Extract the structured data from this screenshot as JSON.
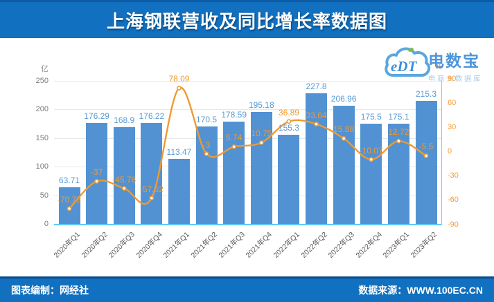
{
  "header": {
    "title": "上海钢联营收及同比增长率数据图"
  },
  "footer": {
    "left": "图表编制：网经社",
    "right": "数据来源：WWW.100EC.CN"
  },
  "watermark": {
    "logo": "eDT",
    "brand": "电数宝",
    "tagline": "电商大数据库"
  },
  "colors": {
    "header_bg": "#1170bf",
    "bar": "#5292d3",
    "bar_label": "#5b9bd5",
    "line": "#ee9a33",
    "line_label": "#ee9a33",
    "left_tick": "#7b7b7b",
    "right_tick": "#f49d3a",
    "grid": "#e8e8e8",
    "x_axis_line": "#5fc8f5",
    "right_axis_line": "#8ec9ed"
  },
  "chart_data": {
    "type": "bar",
    "title": "上海钢联营收及同比增长率数据图",
    "legend_position": "none",
    "grid": true,
    "categories": [
      "2020年Q1",
      "2020年Q2",
      "2020年Q3",
      "2020年Q4",
      "2021年Q1",
      "2021年Q2",
      "2021年Q3",
      "2021年Q4",
      "2022年Q1",
      "2022年Q2",
      "2022年Q3",
      "2022年Q4",
      "2023年Q1",
      "2023年Q2"
    ],
    "series": [
      {
        "name": "营收",
        "type": "bar",
        "axis": "left",
        "unit": "亿",
        "values": [
          63.71,
          176.29,
          168.9,
          176.22,
          113.47,
          170.5,
          178.59,
          195.18,
          155.3,
          227.8,
          206.96,
          175.5,
          175.1,
          215.3
        ],
        "labels": [
          "63.71",
          "176.29",
          "168.9",
          "176.22",
          "113.47",
          "170.5",
          "178.59",
          "195.18",
          "155.3",
          "227.8",
          "206.96",
          "175.5",
          "175.1",
          "215.3"
        ]
      },
      {
        "name": "同比增长率",
        "type": "line",
        "axis": "right",
        "unit": "%",
        "values": [
          -70.72,
          -37,
          -45.78,
          -57.62,
          78.09,
          -3,
          5.74,
          10.75,
          36.89,
          33.64,
          15.88,
          -10.07,
          12.72,
          -5.5
        ],
        "labels": [
          "-70.72",
          "-37",
          "-45.78",
          "-57.62",
          "78.09",
          "-3",
          "5.74",
          "10.75",
          "36.89",
          "33.64",
          "15.88",
          "-10.07",
          "12.72",
          "-5.5"
        ]
      }
    ],
    "left_axis": {
      "unit": "亿",
      "range": [
        0,
        250
      ],
      "ticks": [
        0,
        50,
        100,
        150,
        200,
        250
      ]
    },
    "right_axis": {
      "unit": "%",
      "range": [
        -90,
        90
      ],
      "ticks": [
        -90,
        -60,
        -30,
        0,
        30,
        60,
        90
      ]
    }
  }
}
